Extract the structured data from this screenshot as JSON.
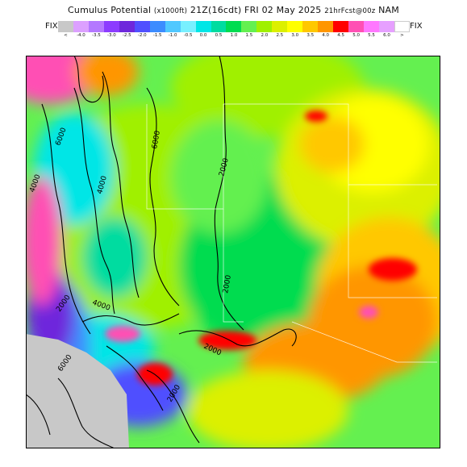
{
  "title": {
    "main": "Cumulus Potential",
    "units": "(x1000ft)",
    "valid": "21Z(16cdt) FRI 02 May 2025",
    "forecast": "21hrFcst@00z",
    "model": "NAM"
  },
  "legend": {
    "left_label": "FIX",
    "right_label": "FIX",
    "entries": [
      {
        "label": "<",
        "color": "#c8c8c8"
      },
      {
        "label": "-4.0",
        "color": "#dca0ff"
      },
      {
        "label": "-3.5",
        "color": "#b478ff"
      },
      {
        "label": "-3.0",
        "color": "#8c3cff"
      },
      {
        "label": "-2.5",
        "color": "#6e28dc"
      },
      {
        "label": "-2.0",
        "color": "#5050ff"
      },
      {
        "label": "-1.5",
        "color": "#3c8cff"
      },
      {
        "label": "-1.0",
        "color": "#50c8ff"
      },
      {
        "label": "-0.5",
        "color": "#78f0ff"
      },
      {
        "label": "0.0",
        "color": "#00e6e6"
      },
      {
        "label": "0.5",
        "color": "#00dca0"
      },
      {
        "label": "1.0",
        "color": "#00dc50"
      },
      {
        "label": "1.5",
        "color": "#64f050"
      },
      {
        "label": "2.0",
        "color": "#a0f000"
      },
      {
        "label": "2.5",
        "color": "#dcf000"
      },
      {
        "label": "3.0",
        "color": "#ffff00"
      },
      {
        "label": "3.5",
        "color": "#ffc800"
      },
      {
        "label": "4.0",
        "color": "#ff9600"
      },
      {
        "label": "4.5",
        "color": "#ff0000"
      },
      {
        "label": "5.0",
        "color": "#ff50b4"
      },
      {
        "label": "5.5",
        "color": "#ff78ff"
      },
      {
        "label": "6.0",
        "color": "#e6a0ff"
      },
      {
        "label": ">",
        "color": "#ffffff"
      }
    ]
  },
  "contours": {
    "labels": [
      "6000",
      "6000",
      "4000",
      "4000",
      "2000",
      "2000",
      "2000",
      "4000",
      "2000",
      "6000",
      "2000"
    ]
  }
}
